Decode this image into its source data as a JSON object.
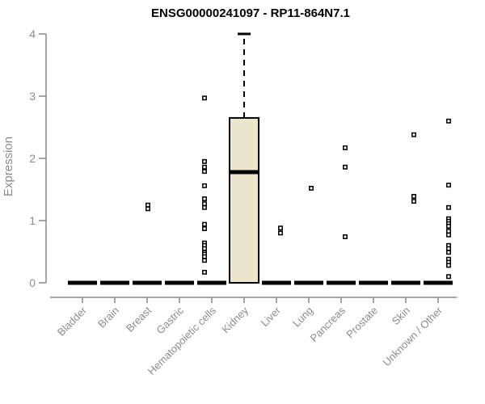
{
  "chart_data": {
    "type": "boxplot",
    "title": "ENSG00000241097 - RP11-864N7.1",
    "ylabel": "Expression",
    "xlabel": "",
    "ylim": [
      0,
      4
    ],
    "yticks": [
      "0",
      "1",
      "2",
      "3",
      "4"
    ],
    "grid": false,
    "legend": "none",
    "axis_color": "#888888",
    "label_color": "#8c8c8c",
    "box_fill_color": "#ECE7CC",
    "box_border_color": "#000000",
    "outlier_marker": "open-square",
    "categories": [
      "Bladder",
      "Brain",
      "Breast",
      "Gastric",
      "Hematopoietic cells",
      "Kidney",
      "Liver",
      "Lung",
      "Pancreas",
      "Prostate",
      "Skin",
      "Unknown / Other"
    ],
    "boxes": [
      {
        "category": "Bladder",
        "q1": 0,
        "median": 0,
        "q3": 0,
        "whisker_low": 0,
        "whisker_high": 0,
        "outliers": [],
        "outlier_dx": 0
      },
      {
        "category": "Brain",
        "q1": 0,
        "median": 0,
        "q3": 0,
        "whisker_low": 0,
        "whisker_high": 0,
        "outliers": [],
        "outlier_dx": 0
      },
      {
        "category": "Breast",
        "q1": 0,
        "median": 0,
        "q3": 0,
        "whisker_low": 0,
        "whisker_high": 0,
        "outliers": [
          1.25,
          1.19
        ],
        "outlier_dx": 1
      },
      {
        "category": "Gastric",
        "q1": 0,
        "median": 0,
        "q3": 0,
        "whisker_low": 0,
        "whisker_high": 0,
        "outliers": [],
        "outlier_dx": 0
      },
      {
        "category": "Hematopoietic cells",
        "q1": 0,
        "median": 0,
        "q3": 0,
        "whisker_low": 0,
        "whisker_high": 0,
        "outliers": [
          2.97,
          1.95,
          1.86,
          1.79,
          1.56,
          1.35,
          1.27,
          1.21,
          0.94,
          0.87,
          0.64,
          0.6,
          0.55,
          0.49,
          0.46,
          0.42,
          0.36,
          0.17
        ],
        "outlier_dx": -9
      },
      {
        "category": "Kidney",
        "q1": 0,
        "median": 1.78,
        "q3": 2.65,
        "whisker_low": 0,
        "whisker_high": 4.0,
        "outliers": [],
        "outlier_dx": 0
      },
      {
        "category": "Liver",
        "q1": 0,
        "median": 0,
        "q3": 0,
        "whisker_low": 0,
        "whisker_high": 0,
        "outliers": [
          0.88,
          0.8
        ],
        "outlier_dx": 5
      },
      {
        "category": "Lung",
        "q1": 0,
        "median": 0,
        "q3": 0,
        "whisker_low": 0,
        "whisker_high": 0,
        "outliers": [
          1.52
        ],
        "outlier_dx": 3
      },
      {
        "category": "Pancreas",
        "q1": 0,
        "median": 0,
        "q3": 0,
        "whisker_low": 0,
        "whisker_high": 0,
        "outliers": [
          2.17,
          1.86,
          0.74
        ],
        "outlier_dx": 5
      },
      {
        "category": "Prostate",
        "q1": 0,
        "median": 0,
        "q3": 0,
        "whisker_low": 0,
        "whisker_high": 0,
        "outliers": [],
        "outlier_dx": 0
      },
      {
        "category": "Skin",
        "q1": 0,
        "median": 0,
        "q3": 0,
        "whisker_low": 0,
        "whisker_high": 0,
        "outliers": [
          2.38,
          1.39,
          1.31
        ],
        "outlier_dx": 10
      },
      {
        "category": "Unknown / Other",
        "q1": 0,
        "median": 0,
        "q3": 0,
        "whisker_low": 0,
        "whisker_high": 0,
        "outliers": [
          2.6,
          1.57,
          1.21,
          1.03,
          0.99,
          0.95,
          0.91,
          0.83,
          0.77,
          0.6,
          0.55,
          0.49,
          0.38,
          0.33,
          0.28,
          0.1
        ],
        "outlier_dx": 13
      }
    ]
  }
}
